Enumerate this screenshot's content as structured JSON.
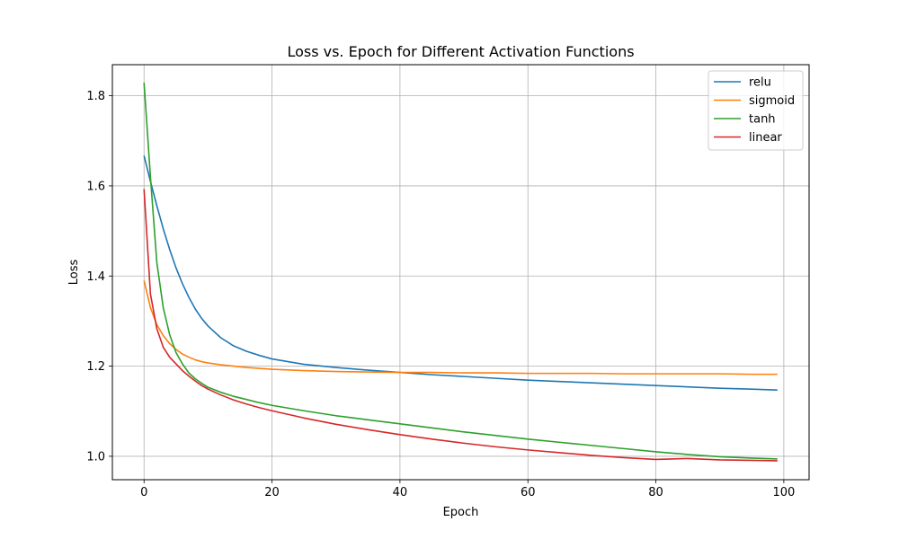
{
  "chart_data": {
    "type": "line",
    "title": "Loss vs. Epoch for Different Activation Functions",
    "xlabel": "Epoch",
    "ylabel": "Loss",
    "xlim": [
      -4.95,
      103.95
    ],
    "ylim": [
      0.948,
      1.869
    ],
    "xticks": [
      0,
      20,
      40,
      60,
      80,
      100
    ],
    "yticks": [
      1.0,
      1.2,
      1.4,
      1.6,
      1.8
    ],
    "xtick_labels": [
      "0",
      "20",
      "40",
      "60",
      "80",
      "100"
    ],
    "ytick_labels": [
      "1.0",
      "1.2",
      "1.4",
      "1.6",
      "1.8"
    ],
    "grid": true,
    "legend_position": "top-right",
    "x": [
      0,
      1,
      2,
      3,
      4,
      5,
      6,
      7,
      8,
      9,
      10,
      12,
      14,
      16,
      18,
      20,
      25,
      30,
      35,
      40,
      45,
      50,
      55,
      60,
      65,
      70,
      75,
      80,
      85,
      90,
      95,
      99
    ],
    "series": [
      {
        "name": "relu",
        "color": "#1f77b4",
        "values": [
          1.667,
          1.61,
          1.556,
          1.505,
          1.459,
          1.418,
          1.383,
          1.353,
          1.327,
          1.306,
          1.289,
          1.263,
          1.245,
          1.233,
          1.224,
          1.216,
          1.204,
          1.197,
          1.191,
          1.186,
          1.181,
          1.177,
          1.173,
          1.169,
          1.166,
          1.163,
          1.16,
          1.157,
          1.154,
          1.151,
          1.149,
          1.147
        ]
      },
      {
        "name": "sigmoid",
        "color": "#ff7f0e",
        "values": [
          1.39,
          1.33,
          1.292,
          1.268,
          1.25,
          1.237,
          1.227,
          1.22,
          1.214,
          1.21,
          1.207,
          1.203,
          1.2,
          1.197,
          1.195,
          1.193,
          1.19,
          1.188,
          1.187,
          1.186,
          1.186,
          1.185,
          1.185,
          1.184,
          1.184,
          1.184,
          1.183,
          1.183,
          1.183,
          1.183,
          1.182,
          1.182
        ]
      },
      {
        "name": "tanh",
        "color": "#2ca02c",
        "values": [
          1.829,
          1.62,
          1.43,
          1.33,
          1.27,
          1.23,
          1.205,
          1.185,
          1.172,
          1.162,
          1.153,
          1.142,
          1.133,
          1.126,
          1.119,
          1.113,
          1.101,
          1.09,
          1.081,
          1.072,
          1.063,
          1.054,
          1.046,
          1.038,
          1.031,
          1.024,
          1.017,
          1.01,
          1.004,
          0.999,
          0.996,
          0.994
        ]
      },
      {
        "name": "linear",
        "color": "#d62728",
        "values": [
          1.593,
          1.36,
          1.283,
          1.242,
          1.22,
          1.205,
          1.19,
          1.178,
          1.167,
          1.157,
          1.149,
          1.136,
          1.125,
          1.116,
          1.108,
          1.101,
          1.085,
          1.071,
          1.059,
          1.048,
          1.038,
          1.029,
          1.021,
          1.014,
          1.008,
          1.002,
          0.997,
          0.993,
          0.995,
          0.992,
          0.991,
          0.99
        ]
      }
    ]
  }
}
